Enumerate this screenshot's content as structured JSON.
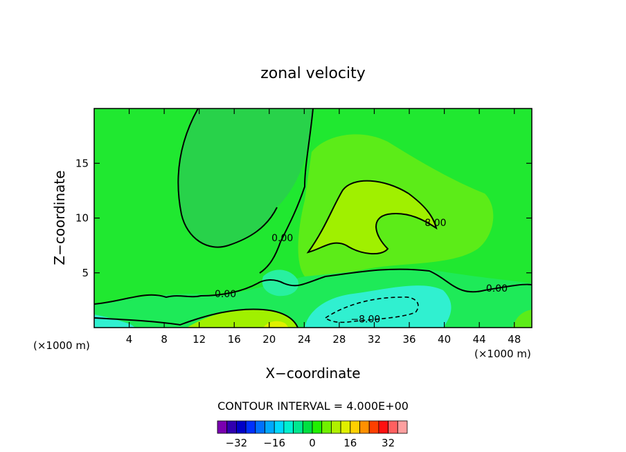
{
  "chart_data": {
    "type": "contour",
    "title": "zonal velocity",
    "xlabel": "X−coordinate",
    "ylabel": "Z−coordinate",
    "x_unit_left": "(×1000 m)",
    "x_unit_right": "(×1000 m)",
    "xlim": [
      0,
      50
    ],
    "ylim": [
      0,
      20
    ],
    "x_ticks": [
      4,
      8,
      12,
      16,
      20,
      24,
      28,
      32,
      36,
      40,
      44,
      48
    ],
    "y_ticks": [
      5,
      10,
      15
    ],
    "contour_interval_text": "CONTOUR INTERVAL = 4.000E+00",
    "contour_labels": [
      {
        "text": "0.00",
        "x": 15.0,
        "z": 3.1
      },
      {
        "text": "0.00",
        "x": 21.5,
        "z": 8.2
      },
      {
        "text": "8.00",
        "x": 39.0,
        "z": 9.6
      },
      {
        "text": "0.00",
        "x": 46.0,
        "z": 3.6
      },
      {
        "text": "−8.00",
        "x": 31.0,
        "z": 0.8
      }
    ],
    "colorbar": {
      "levels": [
        -36,
        -32,
        -28,
        -24,
        -20,
        -16,
        -12,
        -8,
        -4,
        0,
        4,
        8,
        12,
        16,
        20,
        24,
        28,
        32,
        36
      ],
      "tick_labels": [
        "−32",
        "−16",
        "0",
        "16",
        "32"
      ],
      "tick_values": [
        -32,
        -16,
        0,
        16,
        32
      ],
      "colors": [
        "#7a00b0",
        "#3000b0",
        "#0000c8",
        "#0030ff",
        "#0070ff",
        "#00a8ff",
        "#00d8ff",
        "#00f0d0",
        "#00e890",
        "#00e040",
        "#20f000",
        "#70f000",
        "#b0f000",
        "#e0f000",
        "#ffd000",
        "#ff9000",
        "#ff4000",
        "#ff1010",
        "#ff6060",
        "#ffa0a0"
      ]
    }
  }
}
